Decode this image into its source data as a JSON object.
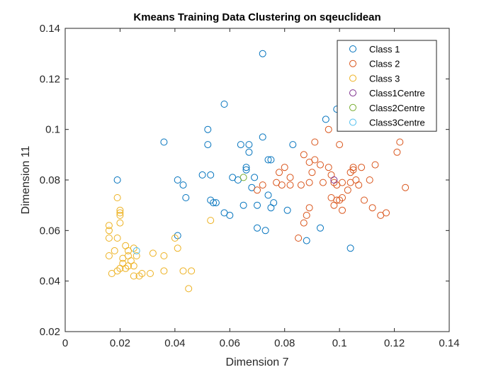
{
  "chart_data": {
    "type": "scatter",
    "title": "Kmeans Training Data Clustering on sqeuclidean",
    "xlabel": "Dimension 7",
    "ylabel": "Dimension 11",
    "xlim": [
      0,
      0.14
    ],
    "ylim": [
      0.02,
      0.14
    ],
    "xticks": [
      "0",
      "0.02",
      "0.04",
      "0.06",
      "0.08",
      "0.1",
      "0.12",
      "0.14"
    ],
    "yticks": [
      "0.02",
      "0.04",
      "0.06",
      "0.08",
      "0.1",
      "0.12",
      "0.14"
    ],
    "grid": false,
    "legend_position": "top-right",
    "series": [
      {
        "name": "Class 1",
        "color": "#0072BD",
        "points": [
          [
            0.019,
            0.08
          ],
          [
            0.036,
            0.095
          ],
          [
            0.041,
            0.08
          ],
          [
            0.043,
            0.078
          ],
          [
            0.044,
            0.073
          ],
          [
            0.041,
            0.058
          ],
          [
            0.05,
            0.082
          ],
          [
            0.052,
            0.094
          ],
          [
            0.052,
            0.1
          ],
          [
            0.053,
            0.082
          ],
          [
            0.053,
            0.072
          ],
          [
            0.054,
            0.071
          ],
          [
            0.055,
            0.071
          ],
          [
            0.058,
            0.11
          ],
          [
            0.058,
            0.067
          ],
          [
            0.06,
            0.066
          ],
          [
            0.061,
            0.081
          ],
          [
            0.063,
            0.08
          ],
          [
            0.064,
            0.094
          ],
          [
            0.066,
            0.085
          ],
          [
            0.066,
            0.084
          ],
          [
            0.067,
            0.094
          ],
          [
            0.067,
            0.091
          ],
          [
            0.065,
            0.07
          ],
          [
            0.068,
            0.077
          ],
          [
            0.069,
            0.081
          ],
          [
            0.07,
            0.061
          ],
          [
            0.07,
            0.07
          ],
          [
            0.072,
            0.13
          ],
          [
            0.072,
            0.097
          ],
          [
            0.073,
            0.06
          ],
          [
            0.074,
            0.074
          ],
          [
            0.074,
            0.088
          ],
          [
            0.075,
            0.088
          ],
          [
            0.075,
            0.069
          ],
          [
            0.076,
            0.071
          ],
          [
            0.081,
            0.068
          ],
          [
            0.083,
            0.094
          ],
          [
            0.088,
            0.056
          ],
          [
            0.093,
            0.061
          ],
          [
            0.095,
            0.104
          ],
          [
            0.099,
            0.108
          ],
          [
            0.104,
            0.053
          ]
        ]
      },
      {
        "name": "Class 2",
        "color": "#D95319",
        "points": [
          [
            0.07,
            0.076
          ],
          [
            0.072,
            0.078
          ],
          [
            0.077,
            0.079
          ],
          [
            0.078,
            0.083
          ],
          [
            0.079,
            0.078
          ],
          [
            0.08,
            0.085
          ],
          [
            0.082,
            0.081
          ],
          [
            0.082,
            0.078
          ],
          [
            0.085,
            0.057
          ],
          [
            0.086,
            0.078
          ],
          [
            0.087,
            0.09
          ],
          [
            0.087,
            0.063
          ],
          [
            0.088,
            0.066
          ],
          [
            0.089,
            0.069
          ],
          [
            0.089,
            0.087
          ],
          [
            0.089,
            0.079
          ],
          [
            0.09,
            0.083
          ],
          [
            0.091,
            0.095
          ],
          [
            0.091,
            0.088
          ],
          [
            0.093,
            0.086
          ],
          [
            0.094,
            0.079
          ],
          [
            0.096,
            0.085
          ],
          [
            0.096,
            0.1
          ],
          [
            0.097,
            0.082
          ],
          [
            0.097,
            0.073
          ],
          [
            0.098,
            0.07
          ],
          [
            0.098,
            0.079
          ],
          [
            0.099,
            0.072
          ],
          [
            0.099,
            0.078
          ],
          [
            0.1,
            0.094
          ],
          [
            0.1,
            0.072
          ],
          [
            0.101,
            0.068
          ],
          [
            0.101,
            0.073
          ],
          [
            0.101,
            0.079
          ],
          [
            0.103,
            0.076
          ],
          [
            0.104,
            0.083
          ],
          [
            0.104,
            0.079
          ],
          [
            0.105,
            0.085
          ],
          [
            0.105,
            0.084
          ],
          [
            0.106,
            0.08
          ],
          [
            0.107,
            0.078
          ],
          [
            0.108,
            0.085
          ],
          [
            0.109,
            0.072
          ],
          [
            0.111,
            0.08
          ],
          [
            0.112,
            0.069
          ],
          [
            0.113,
            0.086
          ],
          [
            0.115,
            0.066
          ],
          [
            0.117,
            0.067
          ],
          [
            0.121,
            0.091
          ],
          [
            0.122,
            0.095
          ],
          [
            0.124,
            0.077
          ]
        ]
      },
      {
        "name": "Class 3",
        "color": "#EDB120",
        "points": [
          [
            0.016,
            0.062
          ],
          [
            0.016,
            0.06
          ],
          [
            0.016,
            0.057
          ],
          [
            0.016,
            0.05
          ],
          [
            0.017,
            0.043
          ],
          [
            0.018,
            0.052
          ],
          [
            0.019,
            0.073
          ],
          [
            0.019,
            0.057
          ],
          [
            0.019,
            0.044
          ],
          [
            0.02,
            0.068
          ],
          [
            0.02,
            0.067
          ],
          [
            0.02,
            0.066
          ],
          [
            0.02,
            0.063
          ],
          [
            0.02,
            0.045
          ],
          [
            0.021,
            0.047
          ],
          [
            0.021,
            0.049
          ],
          [
            0.022,
            0.045
          ],
          [
            0.022,
            0.054
          ],
          [
            0.023,
            0.046
          ],
          [
            0.023,
            0.05
          ],
          [
            0.023,
            0.052
          ],
          [
            0.024,
            0.048
          ],
          [
            0.025,
            0.053
          ],
          [
            0.025,
            0.046
          ],
          [
            0.025,
            0.042
          ],
          [
            0.026,
            0.05
          ],
          [
            0.027,
            0.042
          ],
          [
            0.028,
            0.043
          ],
          [
            0.031,
            0.043
          ],
          [
            0.032,
            0.051
          ],
          [
            0.036,
            0.05
          ],
          [
            0.036,
            0.044
          ],
          [
            0.04,
            0.057
          ],
          [
            0.041,
            0.053
          ],
          [
            0.043,
            0.044
          ],
          [
            0.045,
            0.037
          ],
          [
            0.046,
            0.044
          ],
          [
            0.053,
            0.064
          ]
        ]
      },
      {
        "name": "Class1Centre",
        "color": "#7E2F8E",
        "points": [
          [
            0.098,
            0.08
          ]
        ]
      },
      {
        "name": "Class2Centre",
        "color": "#77AC30",
        "points": [
          [
            0.065,
            0.081
          ]
        ]
      },
      {
        "name": "Class3Centre",
        "color": "#4DBEEE",
        "points": [
          [
            0.026,
            0.052
          ]
        ]
      }
    ]
  }
}
